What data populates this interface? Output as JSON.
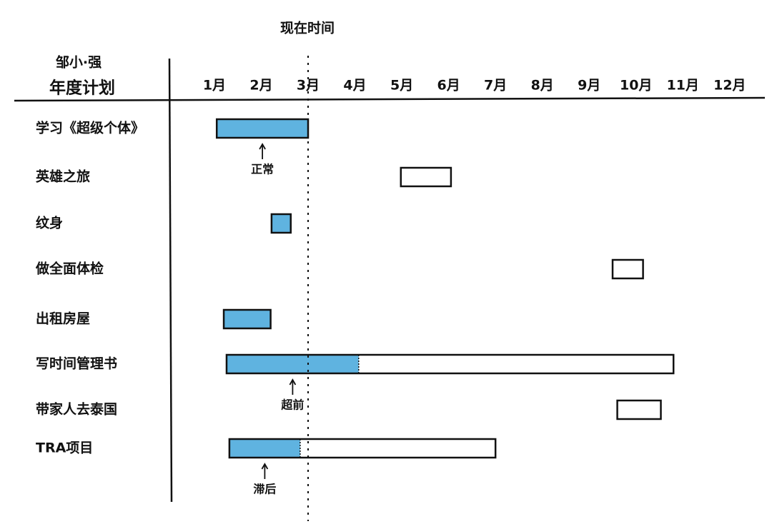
{
  "chart_data": {
    "type": "gantt",
    "title": [
      "邹小·强",
      "年度计划"
    ],
    "now_label": "现在时间",
    "now": 3.0,
    "xlim": [
      0,
      12.75
    ],
    "xticks": [
      {
        "value": 1,
        "label": "1月"
      },
      {
        "value": 2,
        "label": "2月"
      },
      {
        "value": 3,
        "label": "3月"
      },
      {
        "value": 4,
        "label": "4月"
      },
      {
        "value": 5,
        "label": "5月"
      },
      {
        "value": 6,
        "label": "6月"
      },
      {
        "value": 7,
        "label": "7月"
      },
      {
        "value": 8,
        "label": "8月"
      },
      {
        "value": 9,
        "label": "9月"
      },
      {
        "value": 10,
        "label": "10月"
      },
      {
        "value": 11,
        "label": "11月"
      },
      {
        "value": 12,
        "label": "12月"
      }
    ],
    "categories": [
      "学习《超级个体》",
      "英雄之旅",
      "纹身",
      "做全面体检",
      "出租房屋",
      "写时间管理书",
      "带家人去泰国",
      "TRA项目"
    ],
    "start": [
      1.05,
      4.98,
      2.22,
      9.5,
      1.2,
      1.26,
      9.6,
      1.32
    ],
    "end": [
      3.0,
      6.05,
      2.63,
      10.15,
      2.2,
      10.8,
      10.53,
      7.0
    ],
    "progress": [
      3.0,
      null,
      2.63,
      null,
      2.2,
      4.08,
      null,
      2.83
    ],
    "status_labels": [
      "正常",
      null,
      null,
      null,
      null,
      "超前",
      null,
      "滞后"
    ],
    "color": "#5fb3e0"
  }
}
